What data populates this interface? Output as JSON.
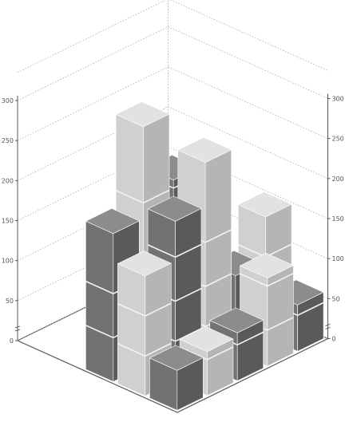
{
  "chart_data": {
    "type": "bar",
    "variant": "3d-stacked-grid",
    "title": "",
    "xlabel": "",
    "ylabel": "",
    "ylim": [
      0,
      300
    ],
    "yticks": [
      0,
      50,
      100,
      150,
      200,
      250,
      300
    ],
    "ytick_labels": [
      "0",
      "50",
      "100",
      "150",
      "200",
      "250",
      "300"
    ],
    "rows": 3,
    "cols": 5,
    "grid": true,
    "series": [
      {
        "row": 0,
        "values": [
          50,
          55,
          60,
          110,
          58
        ],
        "tier_markers": [
          45,
          100
        ]
      },
      {
        "row": 1,
        "values": [
          150,
          200,
          255,
          95,
          150
        ],
        "tier_markers": [
          50,
          100,
          155
        ]
      },
      {
        "row": 2,
        "values": [
          185,
          300,
          215,
          110,
          30
        ],
        "tier_markers": [
          55,
          110,
          205
        ]
      }
    ],
    "colors": {
      "light_top": "#e2e2e2",
      "light_front": "#d0d0d0",
      "light_side": "#b5b5b5",
      "dark_top": "#8c8c8c",
      "dark_front": "#727272",
      "dark_side": "#5a5a5a",
      "grid": "#aaaaaa",
      "axis": "#555555",
      "tick_text": "#555555"
    }
  }
}
